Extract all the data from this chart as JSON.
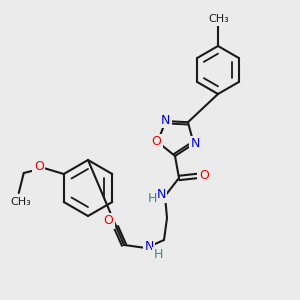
{
  "background_color": "#ebebeb",
  "bond_color": "#1a1a1a",
  "atom_colors": {
    "N": "#0000ee",
    "O": "#ee0000",
    "H": "#3a8a8a",
    "C": "#1a1a1a"
  },
  "bg": "#ebebeb"
}
